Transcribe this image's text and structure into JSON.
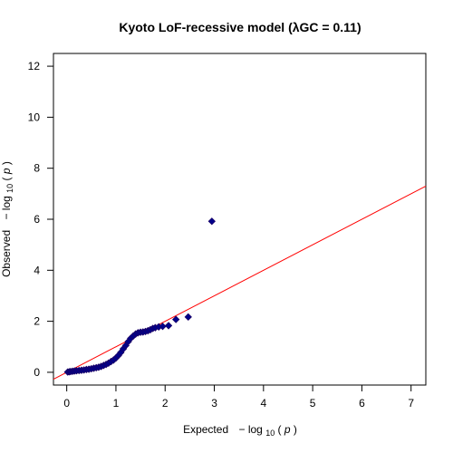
{
  "chart_data": {
    "type": "scatter",
    "subtype": "qq-plot",
    "title": "Kyoto LoF-recessive model (λGC = 0.11)",
    "xlabel": {
      "prefix": "Expected",
      "minus": "−",
      "log": "log",
      "base": "10",
      "var": "p"
    },
    "ylabel": {
      "prefix": "Observed",
      "minus": "−",
      "log": "log",
      "base": "10",
      "var": "p"
    },
    "xlim": [
      -0.27,
      7.3
    ],
    "ylim": [
      -0.5,
      12.5
    ],
    "xticks": [
      0,
      1,
      2,
      3,
      4,
      5,
      6,
      7
    ],
    "yticks": [
      0,
      2,
      4,
      6,
      8,
      10,
      12
    ],
    "reference_line": {
      "slope": 1,
      "intercept": 0,
      "color": "#ff0000"
    },
    "point_color": "#00008b",
    "series": [
      {
        "name": "observed vs expected",
        "points": [
          [
            0.02,
            0.01
          ],
          [
            0.05,
            0.02
          ],
          [
            0.08,
            0.03
          ],
          [
            0.12,
            0.04
          ],
          [
            0.16,
            0.05
          ],
          [
            0.2,
            0.06
          ],
          [
            0.25,
            0.07
          ],
          [
            0.3,
            0.08
          ],
          [
            0.35,
            0.09
          ],
          [
            0.4,
            0.11
          ],
          [
            0.45,
            0.12
          ],
          [
            0.5,
            0.14
          ],
          [
            0.55,
            0.16
          ],
          [
            0.6,
            0.18
          ],
          [
            0.65,
            0.2
          ],
          [
            0.7,
            0.23
          ],
          [
            0.75,
            0.27
          ],
          [
            0.8,
            0.31
          ],
          [
            0.85,
            0.36
          ],
          [
            0.9,
            0.42
          ],
          [
            0.95,
            0.48
          ],
          [
            1.0,
            0.56
          ],
          [
            1.05,
            0.66
          ],
          [
            1.1,
            0.78
          ],
          [
            1.15,
            0.92
          ],
          [
            1.2,
            1.05
          ],
          [
            1.25,
            1.2
          ],
          [
            1.3,
            1.33
          ],
          [
            1.35,
            1.42
          ],
          [
            1.4,
            1.5
          ],
          [
            1.45,
            1.55
          ],
          [
            1.5,
            1.57
          ],
          [
            1.55,
            1.58
          ],
          [
            1.6,
            1.6
          ],
          [
            1.65,
            1.63
          ],
          [
            1.7,
            1.67
          ],
          [
            1.75,
            1.72
          ],
          [
            1.8,
            1.75
          ],
          [
            1.87,
            1.78
          ],
          [
            1.95,
            1.8
          ],
          [
            2.07,
            1.83
          ],
          [
            2.22,
            2.07
          ],
          [
            2.47,
            2.17
          ],
          [
            2.95,
            5.92
          ]
        ]
      }
    ]
  }
}
